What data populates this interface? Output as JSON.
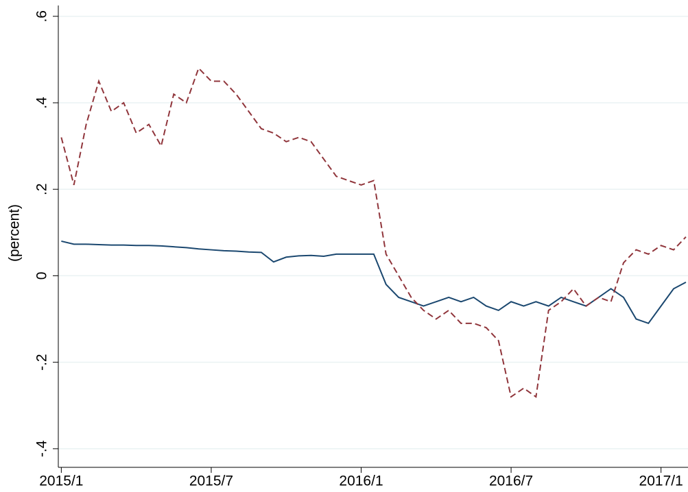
{
  "chart_data": {
    "type": "line",
    "y_label": "(percent)",
    "x": [
      2015,
      2015.042,
      2015.083,
      2015.125,
      2015.167,
      2015.208,
      2015.25,
      2015.292,
      2015.333,
      2015.375,
      2015.417,
      2015.458,
      2015.5,
      2015.542,
      2015.583,
      2015.625,
      2015.667,
      2015.708,
      2015.75,
      2015.792,
      2015.833,
      2015.875,
      2015.917,
      2015.958,
      2016,
      2016.042,
      2016.083,
      2016.125,
      2016.167,
      2016.208,
      2016.25,
      2016.292,
      2016.333,
      2016.375,
      2016.417,
      2016.458,
      2016.5,
      2016.542,
      2016.583,
      2016.625,
      2016.667,
      2016.708,
      2016.75,
      2016.792,
      2016.833,
      2016.875,
      2016.917,
      2016.958,
      2017,
      2017.042,
      2017.083
    ],
    "series": [
      {
        "color": "#1a476f",
        "dash": "solid",
        "values": [
          0.08,
          0.073,
          0.073,
          0.072,
          0.071,
          0.071,
          0.07,
          0.07,
          0.069,
          0.067,
          0.065,
          0.062,
          0.06,
          0.058,
          0.057,
          0.055,
          0.054,
          0.032,
          0.043,
          0.046,
          0.047,
          0.045,
          0.05,
          0.05,
          0.05,
          0.05,
          -0.02,
          -0.05,
          -0.06,
          -0.07,
          -0.06,
          -0.05,
          -0.06,
          -0.05,
          -0.07,
          -0.08,
          -0.06,
          -0.07,
          -0.06,
          -0.07,
          -0.05,
          -0.06,
          -0.07,
          -0.05,
          -0.03,
          -0.05,
          -0.1,
          -0.11,
          -0.07,
          -0.03,
          -0.015
        ]
      },
      {
        "color": "#90353b",
        "dash": "dashed",
        "values": [
          0.32,
          0.21,
          0.35,
          0.45,
          0.38,
          0.4,
          0.33,
          0.35,
          0.3,
          0.42,
          0.4,
          0.48,
          0.45,
          0.45,
          0.42,
          0.38,
          0.34,
          0.33,
          0.31,
          0.32,
          0.31,
          0.27,
          0.23,
          0.22,
          0.21,
          0.22,
          0.05,
          0,
          -0.05,
          -0.08,
          -0.1,
          -0.08,
          -0.11,
          -0.11,
          -0.12,
          -0.15,
          -0.28,
          -0.26,
          -0.28,
          -0.08,
          -0.06,
          -0.03,
          -0.07,
          -0.05,
          -0.06,
          0.03,
          0.06,
          0.05,
          0.07,
          0.06,
          0.09
        ]
      }
    ],
    "xlim": [
      2014.99,
      2017.09
    ],
    "xticks": [
      {
        "value": 2015,
        "label": "2015/1"
      },
      {
        "value": 2015.5,
        "label": "2015/7"
      },
      {
        "value": 2016,
        "label": "2016/1"
      },
      {
        "value": 2016.5,
        "label": "2016/7"
      },
      {
        "value": 2017,
        "label": "2017/1"
      }
    ],
    "ylim": [
      -0.443,
      0.625
    ],
    "yticks": [
      {
        "value": -0.4,
        "label": "-.4"
      },
      {
        "value": -0.2,
        "label": "-.2"
      },
      0,
      {
        "value": 0.2,
        "label": ".2"
      },
      {
        "value": 0.4,
        "label": ".4"
      },
      {
        "value": 0.6,
        "label": ".6"
      }
    ],
    "grid": true
  }
}
